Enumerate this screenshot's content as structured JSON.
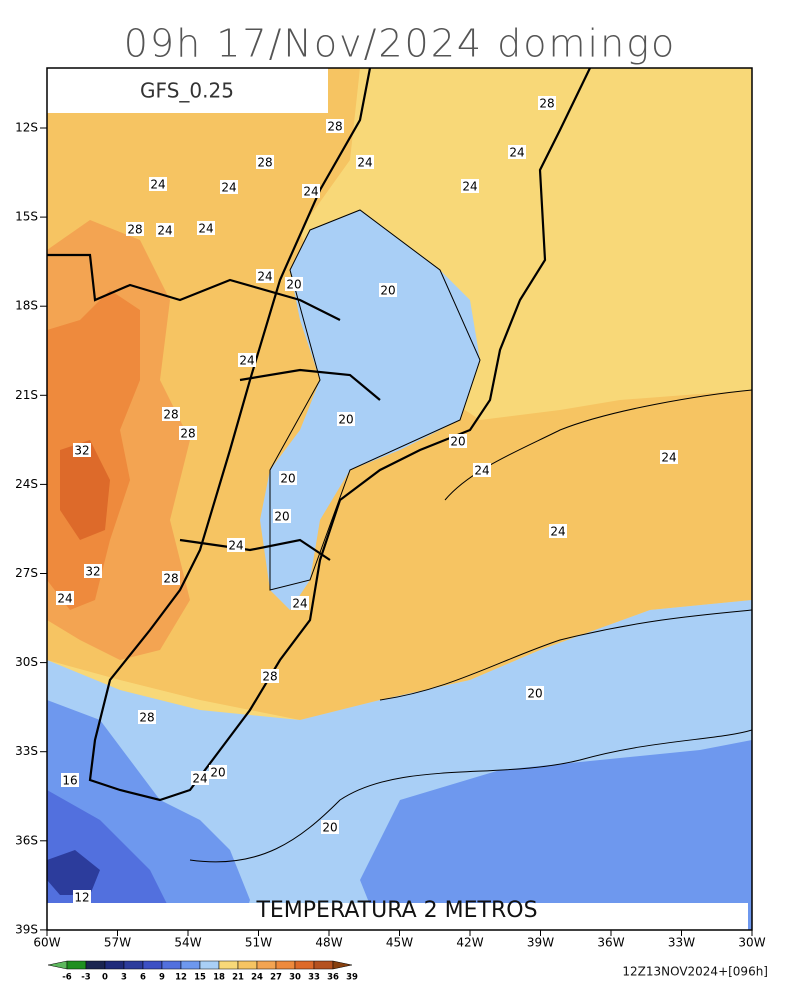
{
  "header": {
    "title": "09h 17/Nov/2024 domingo",
    "model": "GFS_0.25"
  },
  "map": {
    "field_title": "TEMPERATURA 2 METROS",
    "lat_labels": [
      "12S",
      "15S",
      "18S",
      "21S",
      "24S",
      "27S",
      "30S",
      "33S",
      "36S",
      "39S"
    ],
    "lon_labels": [
      "60W",
      "57W",
      "54W",
      "51W",
      "48W",
      "45W",
      "42W",
      "39W",
      "36W",
      "33W",
      "30W"
    ],
    "contour_labels": [
      "28",
      "28",
      "24",
      "28",
      "24",
      "24",
      "24",
      "24",
      "24",
      "28",
      "24",
      "24",
      "20",
      "24",
      "20",
      "24",
      "28",
      "28",
      "20",
      "20",
      "32",
      "24",
      "24",
      "20",
      "20",
      "24",
      "24",
      "32",
      "28",
      "24",
      "24",
      "28",
      "20",
      "28",
      "24",
      "20",
      "16",
      "20",
      "12"
    ]
  },
  "colorbar": {
    "ticks": [
      "-6",
      "-3",
      "0",
      "3",
      "6",
      "9",
      "12",
      "15",
      "18",
      "21",
      "24",
      "27",
      "30",
      "33",
      "36",
      "39"
    ],
    "colors": [
      "#5db85d",
      "#1f8f1f",
      "#1b2550",
      "#1f2b7a",
      "#2c3c9c",
      "#3c50c4",
      "#5270de",
      "#6e98ee",
      "#a9cff6",
      "#f8d878",
      "#f6c462",
      "#f3a452",
      "#ee8a3d",
      "#dd6a2a",
      "#b5511f",
      "#87400f"
    ]
  },
  "footer": {
    "run": "12Z13NOV2024+[096h]"
  }
}
